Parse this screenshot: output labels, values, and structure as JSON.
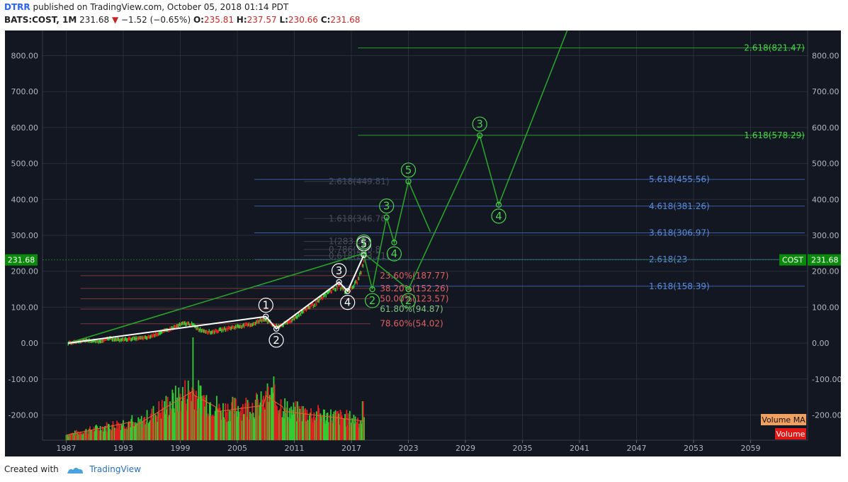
{
  "header": {
    "author": "DTRR",
    "published": "published on TradingView.com, October 05, 2018 01:14 PDT",
    "symbol": "BATS:COST, 1M",
    "last": "231.68",
    "change": "−1.52 (−0.65%)",
    "open_label": "O:",
    "open": "235.81",
    "high_label": "H:",
    "high": "237.57",
    "low_label": "L:",
    "low": "230.66",
    "close_label": "C:",
    "close": "231.68"
  },
  "footer": {
    "created_with": "Created with",
    "brand": "TradingView"
  },
  "colors": {
    "background": "#131722",
    "grid": "#2a2e39",
    "up": "#33cc33",
    "down": "#e02020",
    "wave_green": "#2aa02a",
    "fib_blue": "#5a8ad8",
    "fib_red": "#e06060"
  },
  "chart_data": {
    "type": "candlestick",
    "y_range": [
      -270,
      870
    ],
    "y_ticks": [
      "800.00",
      "700.00",
      "600.00",
      "500.00",
      "400.00",
      "300.00",
      "200.00",
      "100.00",
      "0.00",
      "-100.00",
      "-200.00"
    ],
    "x_range": [
      1984.5,
      2065
    ],
    "x_ticks": [
      "1987",
      "1993",
      "1999",
      "2005",
      "2011",
      "2017",
      "2023",
      "2029",
      "2035",
      "2041",
      "2047",
      "2053",
      "2059"
    ],
    "last_price_label": "231.68",
    "last_price": 231.68,
    "symbol_tag": "COST",
    "price_path": [
      [
        1987.2,
        0
      ],
      [
        1989,
        8
      ],
      [
        1990.5,
        5
      ],
      [
        1991.5,
        13
      ],
      [
        1992.5,
        9
      ],
      [
        1994,
        12
      ],
      [
        1995.5,
        15
      ],
      [
        1996.5,
        25
      ],
      [
        1998,
        40
      ],
      [
        1999.4,
        55
      ],
      [
        2000.2,
        52
      ],
      [
        2001,
        38
      ],
      [
        2002.2,
        30
      ],
      [
        2003.5,
        38
      ],
      [
        2005,
        46
      ],
      [
        2006.5,
        52
      ],
      [
        2007.9,
        68
      ],
      [
        2008.7,
        52
      ],
      [
        2009.2,
        45
      ],
      [
        2010.5,
        60
      ],
      [
        2011.5,
        80
      ],
      [
        2012.5,
        100
      ],
      [
        2013.5,
        115
      ],
      [
        2014.5,
        140
      ],
      [
        2015.7,
        160
      ],
      [
        2016.3,
        145
      ],
      [
        2017.1,
        155
      ],
      [
        2017.7,
        175
      ],
      [
        2018.4,
        230
      ]
    ],
    "wave_white": [
      [
        1987.2,
        0
      ],
      [
        2008.0,
        74
      ],
      [
        2009.1,
        40
      ],
      [
        2015.7,
        170
      ],
      [
        2016.6,
        145
      ],
      [
        2018.3,
        245
      ]
    ],
    "wave_white_labels": [
      {
        "t": "1",
        "x": 2008.0,
        "y": 74,
        "pos": "above"
      },
      {
        "t": "2",
        "x": 2009.1,
        "y": 40,
        "pos": "below"
      },
      {
        "t": "3",
        "x": 2015.7,
        "y": 170,
        "pos": "above"
      },
      {
        "t": "4",
        "x": 2016.6,
        "y": 145,
        "pos": "below"
      },
      {
        "t": "5",
        "x": 2018.3,
        "y": 245,
        "pos": "above"
      }
    ],
    "wave_green_small": [
      [
        2018.3,
        245
      ],
      [
        2019.2,
        150
      ],
      [
        2020.7,
        350
      ],
      [
        2021.5,
        280
      ],
      [
        2023.0,
        450
      ],
      [
        2025.3,
        310
      ]
    ],
    "wave_green_small_labels": [
      {
        "t": "2",
        "x": 2019.2,
        "y": 150,
        "pos": "below"
      },
      {
        "t": "3",
        "x": 2020.7,
        "y": 350,
        "pos": "above"
      },
      {
        "t": "4",
        "x": 2021.5,
        "y": 280,
        "pos": "below"
      },
      {
        "t": "5",
        "x": 2023.0,
        "y": 450,
        "pos": "above"
      }
    ],
    "wave_green_big": [
      [
        1987.2,
        0
      ],
      [
        2018.3,
        250
      ],
      [
        2023.0,
        150
      ],
      [
        2030.5,
        578
      ],
      [
        2032.5,
        385
      ],
      [
        2040,
        890
      ]
    ],
    "wave_green_big_labels": [
      {
        "t": "1",
        "x": 2018.3,
        "y": 250,
        "pos": "above"
      },
      {
        "t": "2",
        "x": 2023.0,
        "y": 150,
        "pos": "below"
      },
      {
        "t": "3",
        "x": 2030.5,
        "y": 578,
        "pos": "above"
      },
      {
        "t": "4",
        "x": 2032.5,
        "y": 385,
        "pos": "below"
      }
    ],
    "fib_green": [
      {
        "label": "2.618(821.47)",
        "y": 821.47
      },
      {
        "label": "1.618(578.29)",
        "y": 578.29
      }
    ],
    "fib_blue": [
      {
        "label": "5.618(455.56)",
        "y": 455.56
      },
      {
        "label": "4.618(381.26)",
        "y": 381.26
      },
      {
        "label": "3.618(306.97)",
        "y": 306.97
      },
      {
        "label": "2.618(23",
        "y": 232.68
      },
      {
        "label": "1.618(158.39)",
        "y": 158.39
      }
    ],
    "fib_ret": [
      {
        "label": "23.60%(187.77)",
        "y": 187.77
      },
      {
        "label": "38.20%(152.26)",
        "y": 152.26
      },
      {
        "label": "50.00%(123.57)",
        "y": 123.57
      },
      {
        "label": "61.80%(94.87)",
        "y": 94.87
      },
      {
        "label": "78.60%(54.02)",
        "y": 54.02
      }
    ],
    "fib_faint": [
      {
        "label": "2.618(449.81)",
        "y": 449.81
      },
      {
        "label": "1.618(346.76)",
        "y": 346.76
      },
      {
        "label": "1(283.08)",
        "y": 283.08
      },
      {
        "label": "0.786(260.8",
        "y": 260.8
      },
      {
        "label": "0.618(243.21)",
        "y": 243.21
      }
    ],
    "volume_legend": [
      "Volume MA",
      "Volume"
    ]
  }
}
